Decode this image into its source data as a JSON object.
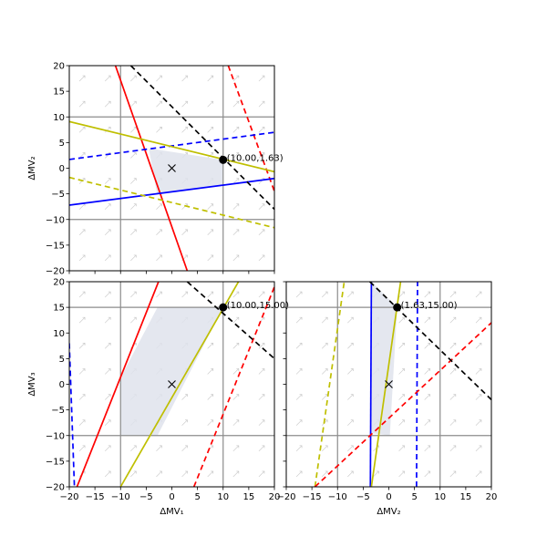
{
  "chart_data": [
    {
      "type": "line",
      "title": "",
      "xlabel": "",
      "ylabel": "ΔMV₂",
      "xlim": [
        -20,
        20
      ],
      "ylim": [
        -20,
        20
      ],
      "xticks": [],
      "yticks": [
        -20,
        -15,
        -10,
        -5,
        0,
        5,
        10,
        15,
        20
      ],
      "grid_lines": {
        "x": [
          -10,
          10
        ],
        "y": [
          -10,
          10
        ]
      },
      "feasible_region": [
        [
          -4.5,
          3.9
        ],
        [
          10,
          1.63
        ],
        [
          10,
          -3.4
        ],
        [
          -2.9,
          -4.9
        ]
      ],
      "origin_marker": [
        0,
        0
      ],
      "optimum": {
        "x": 10.0,
        "y": 1.63,
        "label": "(10.00,1.63)"
      },
      "lines": [
        {
          "color": "#ff0000",
          "style": "solid",
          "points": [
            [
              -11,
              20
            ],
            [
              3,
              -20
            ]
          ]
        },
        {
          "color": "#ff0000",
          "style": "dashed",
          "points": [
            [
              11,
              20
            ],
            [
              20,
              -4.5
            ]
          ]
        },
        {
          "color": "#0000ff",
          "style": "solid",
          "points": [
            [
              -20,
              -7.2
            ],
            [
              20,
              -2
            ]
          ]
        },
        {
          "color": "#0000ff",
          "style": "dashed",
          "points": [
            [
              -20,
              1.7
            ],
            [
              20,
              7
            ]
          ]
        },
        {
          "color": "#bfbf00",
          "style": "solid",
          "points": [
            [
              -20,
              9.1
            ],
            [
              20,
              -0.7
            ]
          ]
        },
        {
          "color": "#bfbf00",
          "style": "dashed",
          "points": [
            [
              -20,
              -1.8
            ],
            [
              20,
              -11.6
            ]
          ]
        },
        {
          "color": "#000000",
          "style": "dashed",
          "points": [
            [
              -8,
              20
            ],
            [
              20,
              -8
            ]
          ]
        }
      ]
    },
    {
      "type": "line",
      "title": "",
      "xlabel": "ΔMV₁",
      "ylabel": "ΔMV₃",
      "xlim": [
        -20,
        20
      ],
      "ylim": [
        -20,
        20
      ],
      "xticks": [
        -20,
        -15,
        -10,
        -5,
        0,
        5,
        10,
        15,
        20
      ],
      "yticks": [
        -20,
        -15,
        -10,
        -5,
        0,
        5,
        10,
        15,
        20
      ],
      "grid_lines": {
        "x": [
          -10,
          10
        ],
        "y": [
          -10,
          15
        ]
      },
      "feasible_region": [
        [
          -10,
          -10
        ],
        [
          -10,
          1.3
        ],
        [
          -2.8,
          15
        ],
        [
          10,
          15
        ],
        [
          -2.8,
          -10
        ]
      ],
      "origin_marker": [
        0,
        0
      ],
      "optimum": {
        "x": 10.0,
        "y": 15.0,
        "label": "(10.00,15.00)"
      },
      "lines": [
        {
          "color": "#ff0000",
          "style": "solid",
          "points": [
            [
              -18.5,
              -20
            ],
            [
              -2.6,
              20
            ]
          ]
        },
        {
          "color": "#ff0000",
          "style": "dashed",
          "points": [
            [
              4.3,
              -20
            ],
            [
              20,
              19
            ]
          ]
        },
        {
          "color": "#0000ff",
          "style": "dashed",
          "points": [
            [
              -20,
              8
            ],
            [
              -19,
              -20
            ]
          ]
        },
        {
          "color": "#bfbf00",
          "style": "solid",
          "points": [
            [
              -10,
              -20
            ],
            [
              13,
              20
            ]
          ]
        },
        {
          "color": "#000000",
          "style": "dashed",
          "points": [
            [
              3,
              20
            ],
            [
              20,
              5
            ]
          ]
        }
      ]
    },
    {
      "type": "line",
      "title": "",
      "xlabel": "ΔMV₂",
      "ylabel": "",
      "xlim": [
        -20,
        20
      ],
      "ylim": [
        -20,
        20
      ],
      "xticks": [
        -20,
        -15,
        -10,
        -5,
        0,
        5,
        10,
        15,
        20
      ],
      "yticks": [],
      "grid_lines": {
        "x": [
          -10,
          10
        ],
        "y": [
          -10,
          15
        ]
      },
      "feasible_region": [
        [
          -3.4,
          -9.5
        ],
        [
          -3.4,
          20
        ],
        [
          1.63,
          15
        ],
        [
          0.2,
          -10
        ]
      ],
      "origin_marker": [
        0,
        0
      ],
      "optimum": {
        "x": 1.63,
        "y": 15.0,
        "label": "(1.63,15.00)"
      },
      "lines": [
        {
          "color": "#0000ff",
          "style": "solid",
          "points": [
            [
              -3.6,
              -20
            ],
            [
              -3.4,
              20
            ]
          ]
        },
        {
          "color": "#0000ff",
          "style": "dashed",
          "points": [
            [
              5.4,
              -20
            ],
            [
              5.6,
              20
            ]
          ]
        },
        {
          "color": "#bfbf00",
          "style": "solid",
          "points": [
            [
              -3.4,
              -20
            ],
            [
              2.3,
              20
            ]
          ]
        },
        {
          "color": "#bfbf00",
          "style": "dashed",
          "points": [
            [
              -14.4,
              -20
            ],
            [
              -8.7,
              20
            ]
          ]
        },
        {
          "color": "#ff0000",
          "style": "dashed",
          "points": [
            [
              -14.4,
              -20
            ],
            [
              20,
              12
            ]
          ]
        },
        {
          "color": "#000000",
          "style": "dashed",
          "points": [
            [
              -3.7,
              20
            ],
            [
              20,
              -3
            ]
          ]
        }
      ]
    }
  ]
}
